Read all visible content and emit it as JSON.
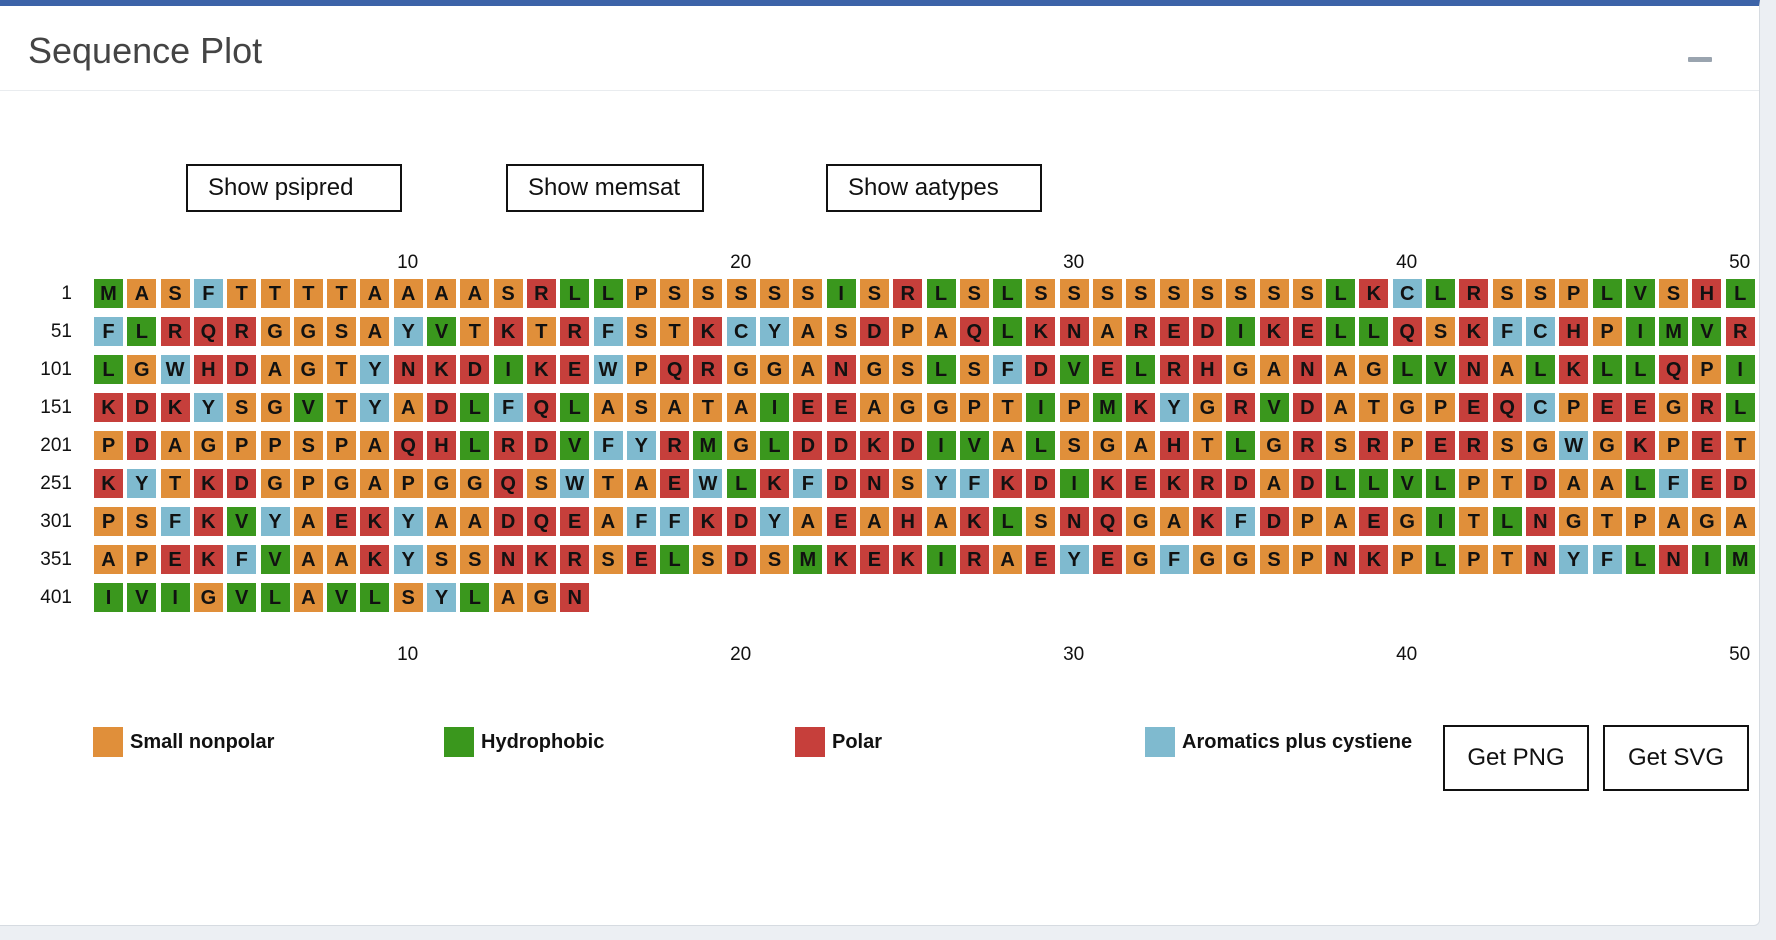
{
  "panel": {
    "title": "Sequence Plot",
    "collapse_label": "minus-icon"
  },
  "controls": {
    "show_psipred": "Show psipred",
    "show_memsat": "Show memsat",
    "show_aatypes": "Show aatypes",
    "get_png": "Get PNG",
    "get_svg": "Get SVG"
  },
  "plot": {
    "residues_per_row": 50,
    "position_ticks": [
      "10",
      "20",
      "30",
      "40",
      "50"
    ],
    "row_starts": [
      "1",
      "51",
      "101",
      "151",
      "201",
      "251",
      "301",
      "351",
      "401"
    ],
    "sequence": "MASFTTTTAAAASRLLPSSSSSISRLSLSSSSSSSSSLKCLRSSPLVSHLFLRQRGGSAYVTKTRFSTKCYASDPAQLKNAREDIKELLQSKFCHPIMVRLGWHDAGTYNKDIKEWPQRGGANGSLSFDVELRHGANAGLVNALKLLQPIKDKYSGVTYADLFQLASATAIEEAGGPTIPMKYGRVDATGPEQCPEEGRLPDAGPPSPAQHLRDVFYRMGLDDKDIVALSGAHTLGRSRPERSGWGKPETKYTKDGPGAPGGQSWTAEWLKFDNSYFKDIKEKRDADLLVLPTDAALFEDPSFKVYAEKYAADQEAFFKDYAEAHAKLSNQGAKFDPAEGITLNGTPAGAAPEKFVAAKYSSNKRSELSDSMKEKIRAEYEGFGGSPNKPLPTNYFLNIMIVIGVLAVLSYLAGN",
    "classes": {
      "small_nonpolar": "AGPST",
      "hydrophobic": "ILMV",
      "polar": "DEHKNQR",
      "aromatic_cys": "CFWY"
    }
  },
  "legend": [
    {
      "key": "small_nonpolar",
      "label": "Small nonpolar",
      "color": "#e08f3a"
    },
    {
      "key": "hydrophobic",
      "label": "Hydrophobic",
      "color": "#3a971d"
    },
    {
      "key": "polar",
      "label": "Polar",
      "color": "#c63f3b"
    },
    {
      "key": "aromatic_cys",
      "label": "Aromatics plus cystiene",
      "color": "#7fbacf"
    }
  ]
}
